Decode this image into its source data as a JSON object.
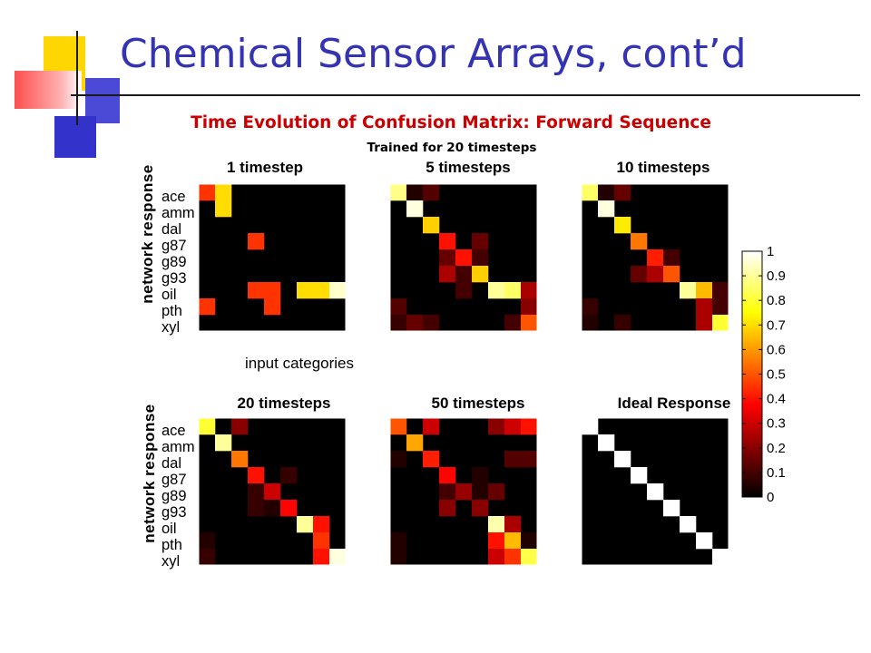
{
  "slide": {
    "title": "Chemical Sensor Arrays, cont’d"
  },
  "chart_data": {
    "type": "heatmap",
    "title": "Time Evolution of Confusion Matrix: Forward Sequence",
    "subtitle": "Trained for 20 timesteps",
    "xlabel": "input categories",
    "ylabel": "network response",
    "categories": [
      "ace",
      "amm",
      "dal",
      "g87",
      "g89",
      "g93",
      "oil",
      "pth",
      "xyl"
    ],
    "colorbar": {
      "colormap": "hot",
      "range": [
        0,
        1
      ],
      "ticks": [
        "0",
        "0.1",
        "0.2",
        "0.3",
        "0.4",
        "0.5",
        "0.6",
        "0.7",
        "0.8",
        "0.9",
        "1"
      ]
    },
    "panels": [
      {
        "title": "1 timestep",
        "matrix": [
          [
            0.45,
            0.7,
            0,
            0,
            0,
            0,
            0,
            0,
            0
          ],
          [
            0,
            0.7,
            0,
            0,
            0,
            0,
            0,
            0,
            0
          ],
          [
            0,
            0,
            0,
            0,
            0,
            0,
            0,
            0,
            0
          ],
          [
            0,
            0,
            0,
            0.45,
            0,
            0,
            0,
            0,
            0
          ],
          [
            0,
            0,
            0,
            0,
            0,
            0,
            0,
            0,
            0
          ],
          [
            0,
            0,
            0,
            0,
            0,
            0,
            0,
            0,
            0
          ],
          [
            0,
            0,
            0,
            0.45,
            0.45,
            0,
            0.7,
            0.7,
            0.95
          ],
          [
            0.45,
            0,
            0,
            0,
            0.45,
            0,
            0,
            0,
            0
          ],
          [
            0,
            0,
            0,
            0,
            0,
            0,
            0,
            0,
            0
          ]
        ]
      },
      {
        "title": "5 timesteps",
        "matrix": [
          [
            0.88,
            0.05,
            0.12,
            0,
            0,
            0,
            0,
            0,
            0
          ],
          [
            0,
            0.97,
            0,
            0,
            0,
            0,
            0,
            0,
            0
          ],
          [
            0,
            0,
            0.68,
            0,
            0,
            0,
            0,
            0,
            0
          ],
          [
            0,
            0,
            0,
            0.4,
            0,
            0.15,
            0,
            0,
            0
          ],
          [
            0,
            0,
            0,
            0.15,
            0.4,
            0.1,
            0,
            0,
            0
          ],
          [
            0,
            0,
            0,
            0.25,
            0.1,
            0.68,
            0,
            0,
            0
          ],
          [
            0,
            0,
            0,
            0,
            0.1,
            0,
            0.9,
            0.85,
            0.25
          ],
          [
            0.12,
            0,
            0,
            0,
            0,
            0,
            0,
            0,
            0.2
          ],
          [
            0.08,
            0.15,
            0.1,
            0,
            0,
            0,
            0,
            0.1,
            0.5
          ]
        ]
      },
      {
        "title": "10 timesteps",
        "matrix": [
          [
            0.85,
            0.05,
            0.15,
            0,
            0,
            0,
            0,
            0,
            0
          ],
          [
            0,
            0.97,
            0,
            0,
            0,
            0,
            0,
            0,
            0
          ],
          [
            0,
            0,
            0.72,
            0,
            0,
            0,
            0,
            0,
            0
          ],
          [
            0,
            0,
            0,
            0.55,
            0,
            0,
            0,
            0,
            0
          ],
          [
            0,
            0,
            0,
            0,
            0.42,
            0.1,
            0,
            0,
            0
          ],
          [
            0,
            0,
            0,
            0.15,
            0.25,
            0.5,
            0,
            0,
            0
          ],
          [
            0,
            0,
            0,
            0,
            0,
            0,
            0.9,
            0.65,
            0.1
          ],
          [
            0.08,
            0,
            0,
            0,
            0,
            0,
            0,
            0.25,
            0.1
          ],
          [
            0.05,
            0,
            0.08,
            0,
            0,
            0,
            0,
            0.25,
            0.8
          ]
        ]
      },
      {
        "title": "20 timesteps",
        "matrix": [
          [
            0.8,
            0,
            0.2,
            0,
            0,
            0,
            0,
            0,
            0
          ],
          [
            0,
            0.9,
            0,
            0,
            0,
            0,
            0,
            0,
            0
          ],
          [
            0,
            0,
            0.55,
            0,
            0,
            0,
            0,
            0,
            0
          ],
          [
            0,
            0,
            0,
            0.4,
            0,
            0.08,
            0,
            0,
            0
          ],
          [
            0,
            0,
            0,
            0.08,
            0.3,
            0,
            0,
            0,
            0
          ],
          [
            0,
            0,
            0,
            0.08,
            0.05,
            0.38,
            0,
            0,
            0
          ],
          [
            0,
            0,
            0,
            0,
            0,
            0,
            0.9,
            0.4,
            0
          ],
          [
            0.05,
            0,
            0,
            0,
            0,
            0,
            0,
            0.45,
            0
          ],
          [
            0.08,
            0,
            0,
            0,
            0,
            0,
            0,
            0.4,
            0.97
          ]
        ]
      },
      {
        "title": "50 timesteps",
        "matrix": [
          [
            0.5,
            0,
            0.3,
            0,
            0,
            0,
            0.2,
            0.3,
            0.4
          ],
          [
            0,
            0.62,
            0,
            0,
            0,
            0,
            0,
            0,
            0
          ],
          [
            0.05,
            0,
            0.42,
            0,
            0,
            0,
            0,
            0.12,
            0.12
          ],
          [
            0,
            0,
            0,
            0.38,
            0,
            0.05,
            0,
            0,
            0
          ],
          [
            0,
            0,
            0,
            0.1,
            0.22,
            0.05,
            0.15,
            0,
            0
          ],
          [
            0,
            0,
            0,
            0.2,
            0,
            0.2,
            0,
            0,
            0
          ],
          [
            0,
            0,
            0,
            0,
            0,
            0,
            0.92,
            0.25,
            0
          ],
          [
            0.05,
            0,
            0,
            0,
            0,
            0,
            0.4,
            0.65,
            0.05
          ],
          [
            0.05,
            0,
            0,
            0,
            0,
            0,
            0.3,
            0.45,
            0.82
          ]
        ]
      },
      {
        "title": "Ideal Response",
        "matrix": [
          [
            1,
            0,
            0,
            0,
            0,
            0,
            0,
            0,
            0
          ],
          [
            0,
            1,
            0,
            0,
            0,
            0,
            0,
            0,
            0
          ],
          [
            0,
            0,
            1,
            0,
            0,
            0,
            0,
            0,
            0
          ],
          [
            0,
            0,
            0,
            1,
            0,
            0,
            0,
            0,
            0
          ],
          [
            0,
            0,
            0,
            0,
            1,
            0,
            0,
            0,
            0
          ],
          [
            0,
            0,
            0,
            0,
            0,
            1,
            0,
            0,
            0
          ],
          [
            0,
            0,
            0,
            0,
            0,
            0,
            1,
            0,
            0
          ],
          [
            0,
            0,
            0,
            0,
            0,
            0,
            0,
            1,
            0
          ],
          [
            0,
            0,
            0,
            0,
            0,
            0,
            0,
            0,
            1
          ]
        ]
      }
    ]
  }
}
